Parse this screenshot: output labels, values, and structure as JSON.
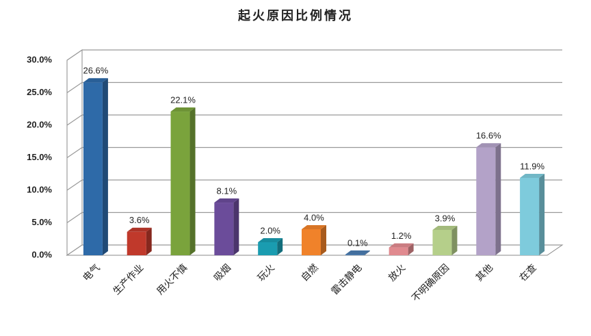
{
  "chart_data": {
    "type": "bar3d",
    "title": "起火原因比例情况",
    "categories": [
      "电气",
      "生产作业",
      "用火不慎",
      "吸烟",
      "玩火",
      "自燃",
      "雷击静电",
      "放火",
      "不明确原因",
      "其他",
      "在查"
    ],
    "values": [
      26.6,
      3.6,
      22.1,
      8.1,
      2.0,
      4.0,
      0.1,
      1.2,
      3.9,
      16.6,
      11.9
    ],
    "value_labels": [
      "26.6%",
      "3.6%",
      "22.1%",
      "8.1%",
      "2.0%",
      "4.0%",
      "0.1%",
      "1.2%",
      "3.9%",
      "16.6%",
      "11.9%"
    ],
    "colors": [
      "#2e6aa8",
      "#c0392b",
      "#7aa33c",
      "#6b4c9a",
      "#1a9cb0",
      "#f0822a",
      "#4a7bb0",
      "#e08a8f",
      "#b5cf8a",
      "#b3a2c8",
      "#7ecbdc"
    ],
    "ylim": [
      0,
      30
    ],
    "yticks": [
      {
        "value": 0,
        "label": "0.0%"
      },
      {
        "value": 5,
        "label": "5.0%"
      },
      {
        "value": 10,
        "label": "10.0%"
      },
      {
        "value": 15,
        "label": "15.0%"
      },
      {
        "value": 20,
        "label": "20.0%"
      },
      {
        "value": 25,
        "label": "25.0%"
      },
      {
        "value": 30,
        "label": "30.0%"
      }
    ],
    "grid": true
  }
}
